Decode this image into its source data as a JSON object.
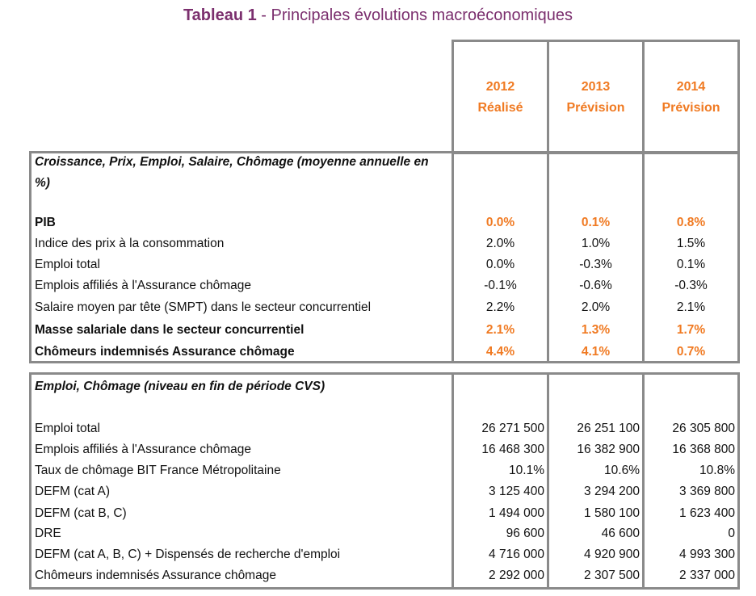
{
  "title": {
    "prefix": "Tableau 1",
    "text": " - Principales évolutions macroéconomiques"
  },
  "colors": {
    "title": "#7b2f6e",
    "highlight": "#f07a22",
    "border": "#8a8a8a"
  },
  "columns": [
    {
      "year": "2012",
      "status": "Réalisé"
    },
    {
      "year": "2013",
      "status": "Prévision"
    },
    {
      "year": "2014",
      "status": "Prévision"
    }
  ],
  "section1": {
    "heading": "Croissance, Prix, Emploi, Salaire, Chômage (moyenne annuelle en %)",
    "rows": [
      {
        "label": "PIB",
        "values": [
          "0.0%",
          "0.1%",
          "0.8%"
        ],
        "highlight": true
      },
      {
        "label": "Indice des prix à la consommation",
        "values": [
          "2.0%",
          "1.0%",
          "1.5%"
        ],
        "highlight": false
      },
      {
        "label": "Emploi total",
        "values": [
          "0.0%",
          "-0.3%",
          "0.1%"
        ],
        "highlight": false
      },
      {
        "label": "Emplois affiliés à l'Assurance chômage",
        "values": [
          "-0.1%",
          "-0.6%",
          "-0.3%"
        ],
        "highlight": false
      },
      {
        "label": "Salaire moyen par tête (SMPT) dans le secteur concurrentiel",
        "values": [
          "2.2%",
          "2.0%",
          "2.1%"
        ],
        "highlight": false
      },
      {
        "label": "Masse salariale dans le secteur concurrentiel",
        "values": [
          "2.1%",
          "1.3%",
          "1.7%"
        ],
        "highlight": true
      },
      {
        "label": "Chômeurs indemnisés Assurance chômage",
        "values": [
          "4.4%",
          "4.1%",
          "0.7%"
        ],
        "highlight": true
      }
    ]
  },
  "section2": {
    "heading": "Emploi, Chômage (niveau en fin de période CVS)",
    "rows": [
      {
        "label": "Emploi total",
        "values": [
          "26 271 500",
          "26 251 100",
          "26 305 800"
        ]
      },
      {
        "label": "Emplois affiliés à l'Assurance chômage",
        "values": [
          "16 468 300",
          "16 382 900",
          "16 368 800"
        ]
      },
      {
        "label": "Taux de chômage BIT France Métropolitaine",
        "values": [
          "10.1%",
          "10.6%",
          "10.8%"
        ]
      },
      {
        "label": "DEFM (cat A)",
        "values": [
          "3 125 400",
          "3 294 200",
          "3 369 800"
        ]
      },
      {
        "label": "DEFM (cat B, C)",
        "values": [
          "1 494 000",
          "1 580 100",
          "1 623 400"
        ]
      },
      {
        "label": "DRE",
        "values": [
          "96 600",
          "46 600",
          "0"
        ]
      },
      {
        "label": "DEFM (cat A, B, C) + Dispensés de recherche d'emploi",
        "values": [
          "4 716 000",
          "4 920 900",
          "4 993 300"
        ]
      },
      {
        "label": "Chômeurs indemnisés Assurance chômage",
        "values": [
          "2 292 000",
          "2 307 500",
          "2 337 000"
        ]
      }
    ]
  }
}
